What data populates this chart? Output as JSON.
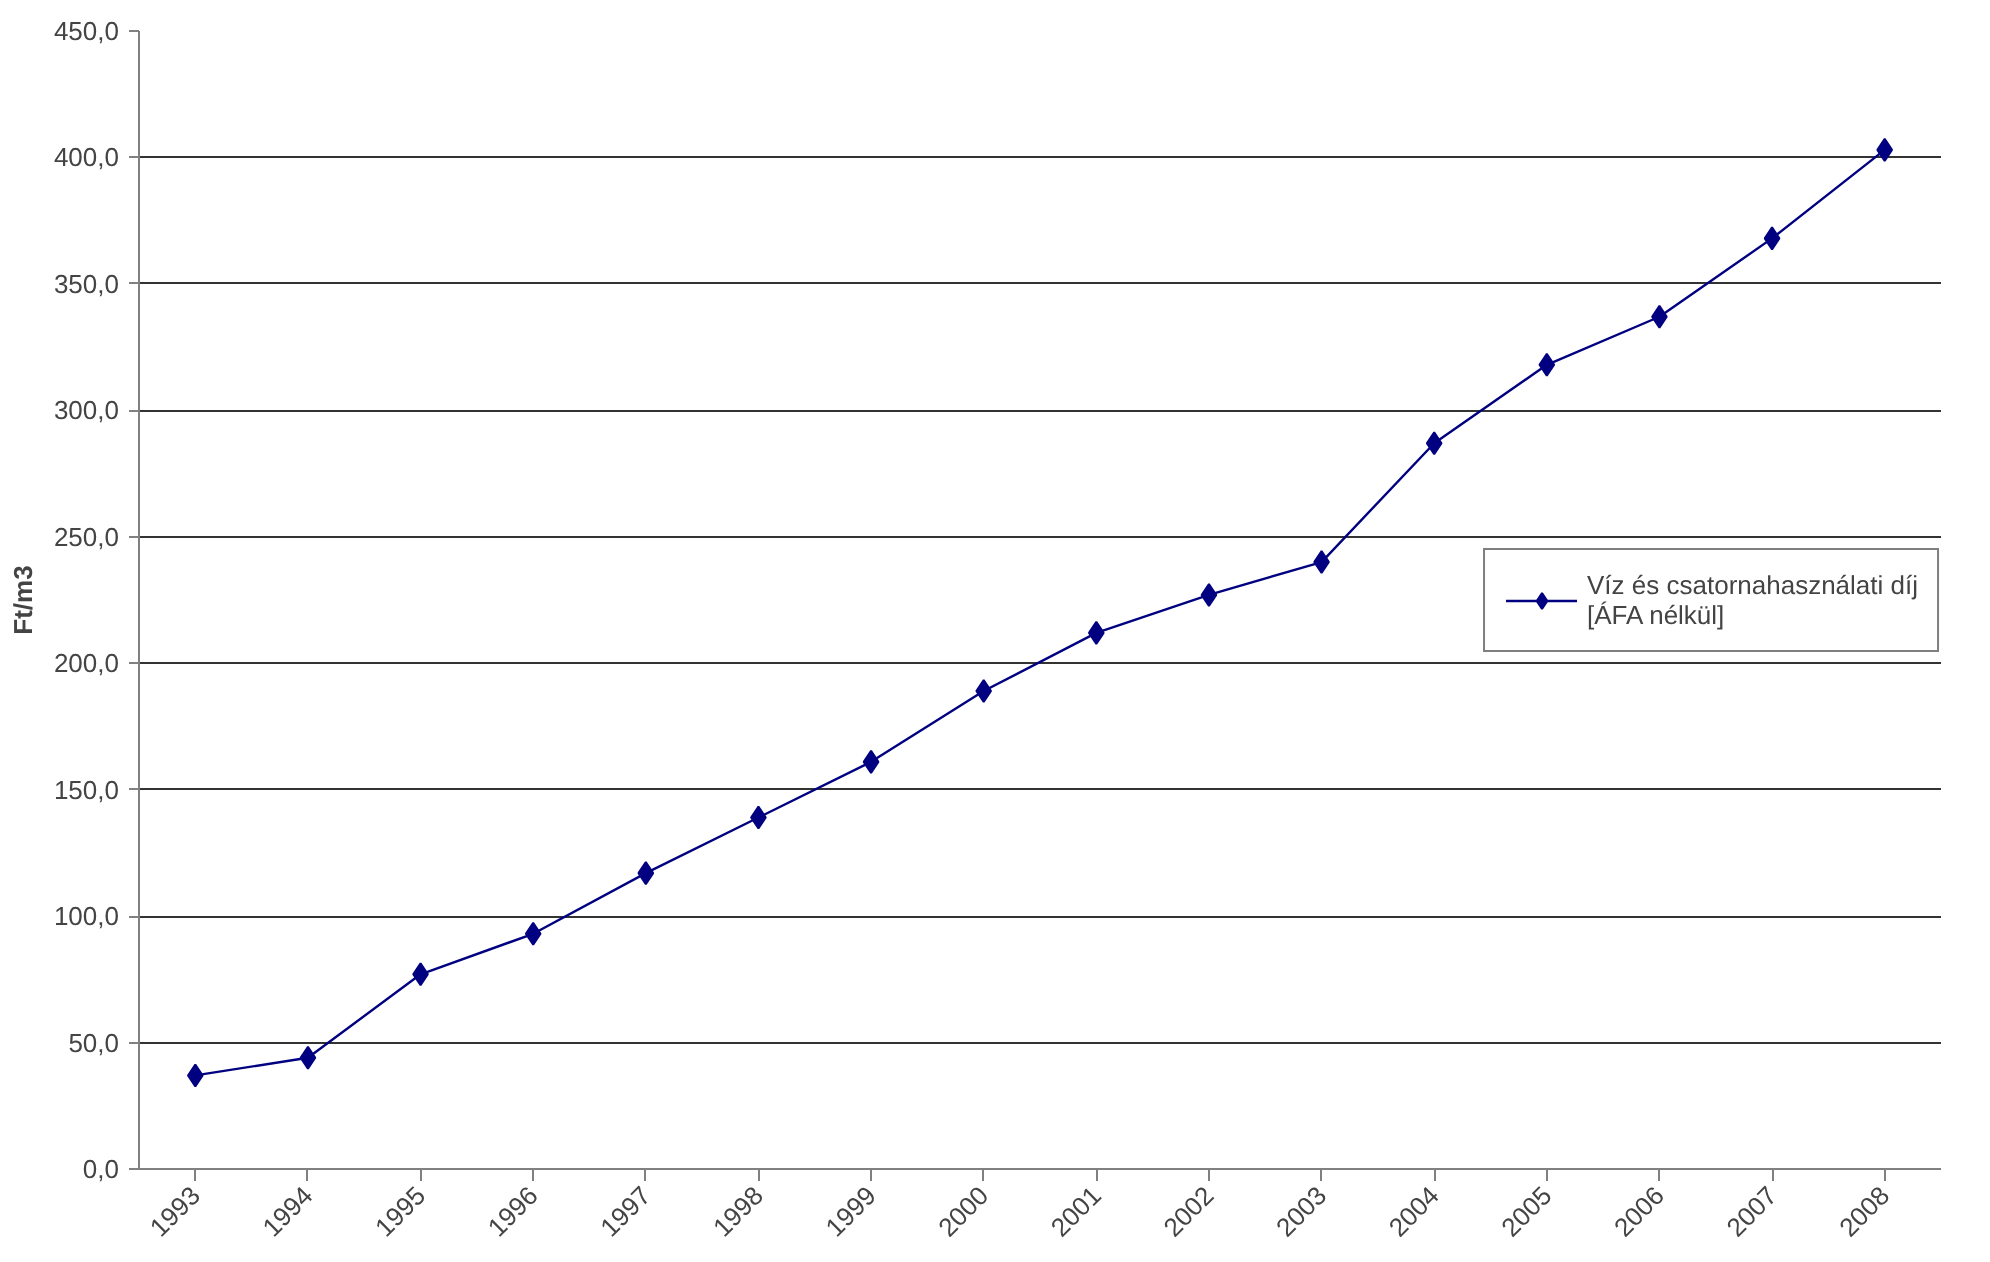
{
  "chart_data": {
    "type": "line",
    "ylabel": "Ft/m3",
    "categories": [
      "1993",
      "1994",
      "1995",
      "1996",
      "1997",
      "1998",
      "1999",
      "2000",
      "2001",
      "2002",
      "2003",
      "2004",
      "2005",
      "2006",
      "2007",
      "2008"
    ],
    "series": [
      {
        "name": "Víz és csatornahasználati díj [ÁFA nélkül]",
        "color": "#000080",
        "values": [
          37,
          44,
          77,
          93,
          117,
          139,
          161,
          189,
          212,
          227,
          240,
          287,
          318,
          337,
          368,
          403
        ]
      }
    ],
    "ylim": [
      0,
      450
    ],
    "yticks": [
      {
        "value": 0,
        "label": "0,0"
      },
      {
        "value": 50,
        "label": "50,0"
      },
      {
        "value": 100,
        "label": "100,0"
      },
      {
        "value": 150,
        "label": "150,0"
      },
      {
        "value": 200,
        "label": "200,0"
      },
      {
        "value": 250,
        "label": "250,0"
      },
      {
        "value": 300,
        "label": "300,0"
      },
      {
        "value": 350,
        "label": "350,0"
      },
      {
        "value": 400,
        "label": "400,0"
      },
      {
        "value": 450,
        "label": "450,0"
      }
    ],
    "grid": "y",
    "legend": "right",
    "marker": "diamond",
    "line_style": "solid"
  }
}
